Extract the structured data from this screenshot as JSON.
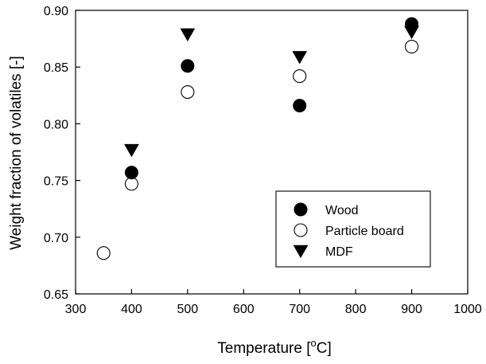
{
  "chart_data": {
    "type": "scatter",
    "title": "",
    "xlabel": "Temperature [",
    "xlabel_superscript": "o",
    "xlabel_suffix": "C]",
    "ylabel": "Weight fraction of volatiles [-]",
    "xlim": [
      300,
      1000
    ],
    "ylim": [
      0.65,
      0.9
    ],
    "xticks": [
      300,
      400,
      500,
      600,
      700,
      800,
      900,
      1000
    ],
    "xtick_labels": [
      "300",
      "400",
      "500",
      "600",
      "700",
      "800",
      "900",
      "1000"
    ],
    "yticks": [
      0.65,
      0.7,
      0.75,
      0.8,
      0.85,
      0.9
    ],
    "ytick_labels": [
      "0.65",
      "0.70",
      "0.75",
      "0.80",
      "0.85",
      "0.90"
    ],
    "grid": false,
    "legend_position": "lower-right",
    "series": [
      {
        "name": "Wood",
        "marker": "filled-circle",
        "color": "#000000",
        "x": [
          400,
          500,
          700,
          900
        ],
        "y": [
          0.757,
          0.851,
          0.816,
          0.888
        ]
      },
      {
        "name": "Particle board",
        "marker": "open-circle",
        "color": "#000000",
        "x": [
          350,
          400,
          500,
          700,
          900
        ],
        "y": [
          0.686,
          0.747,
          0.828,
          0.842,
          0.868
        ]
      },
      {
        "name": "MDF",
        "marker": "filled-triangle-down",
        "color": "#000000",
        "x": [
          400,
          500,
          700,
          900
        ],
        "y": [
          0.777,
          0.879,
          0.859,
          0.881
        ]
      }
    ]
  }
}
